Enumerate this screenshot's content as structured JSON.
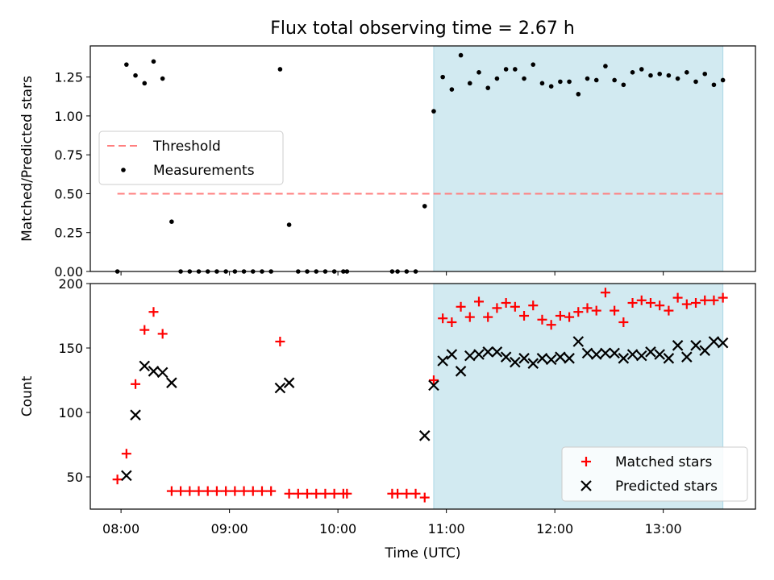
{
  "figure_title": "Flux total observing time = 2.67 h",
  "colors": {
    "threshold": "#ff7f7f",
    "measurements": "#000000",
    "matched": "#ff0000",
    "predicted": "#000000",
    "shade": "#add8e6"
  },
  "chart_data": [
    {
      "type": "scatter",
      "ylabel": "Matched/Predicted stars",
      "xlim": [
        "07:43",
        "13:51"
      ],
      "ylim": [
        0,
        1.45
      ],
      "yticks": [
        "0.00",
        "0.25",
        "0.50",
        "0.75",
        "1.00",
        "1.25"
      ],
      "xtick_values": [
        "08:00",
        "09:00",
        "10:00",
        "11:00",
        "12:00",
        "13:00"
      ],
      "shaded_span": [
        "10:53",
        "13:33"
      ],
      "legend_position": "center-left",
      "threshold": {
        "name": "Threshold",
        "value": 0.5,
        "x_range": [
          "07:58",
          "13:33"
        ]
      },
      "series": [
        {
          "name": "Measurements",
          "points": [
            [
              "07:58",
              0.0
            ],
            [
              "08:03",
              1.33
            ],
            [
              "08:08",
              1.26
            ],
            [
              "08:13",
              1.21
            ],
            [
              "08:18",
              1.35
            ],
            [
              "08:23",
              1.24
            ],
            [
              "08:28",
              0.32
            ],
            [
              "08:33",
              0.0
            ],
            [
              "08:38",
              0.0
            ],
            [
              "08:43",
              0.0
            ],
            [
              "08:48",
              0.0
            ],
            [
              "08:53",
              0.0
            ],
            [
              "08:58",
              0.0
            ],
            [
              "09:03",
              0.0
            ],
            [
              "09:08",
              0.0
            ],
            [
              "09:13",
              0.0
            ],
            [
              "09:18",
              0.0
            ],
            [
              "09:23",
              0.0
            ],
            [
              "09:28",
              1.3
            ],
            [
              "09:33",
              0.3
            ],
            [
              "09:38",
              0.0
            ],
            [
              "09:43",
              0.0
            ],
            [
              "09:48",
              0.0
            ],
            [
              "09:53",
              0.0
            ],
            [
              "09:58",
              0.0
            ],
            [
              "10:03",
              0.0
            ],
            [
              "10:05",
              0.0
            ],
            [
              "10:30",
              0.0
            ],
            [
              "10:33",
              0.0
            ],
            [
              "10:38",
              0.0
            ],
            [
              "10:43",
              0.0
            ],
            [
              "10:48",
              0.42
            ],
            [
              "10:53",
              1.03
            ],
            [
              "10:58",
              1.25
            ],
            [
              "11:03",
              1.17
            ],
            [
              "11:08",
              1.39
            ],
            [
              "11:13",
              1.21
            ],
            [
              "11:18",
              1.28
            ],
            [
              "11:23",
              1.18
            ],
            [
              "11:28",
              1.24
            ],
            [
              "11:33",
              1.3
            ],
            [
              "11:38",
              1.3
            ],
            [
              "11:43",
              1.24
            ],
            [
              "11:48",
              1.33
            ],
            [
              "11:53",
              1.21
            ],
            [
              "11:58",
              1.19
            ],
            [
              "12:03",
              1.22
            ],
            [
              "12:08",
              1.22
            ],
            [
              "12:13",
              1.14
            ],
            [
              "12:18",
              1.24
            ],
            [
              "12:23",
              1.23
            ],
            [
              "12:28",
              1.32
            ],
            [
              "12:33",
              1.23
            ],
            [
              "12:38",
              1.2
            ],
            [
              "12:43",
              1.28
            ],
            [
              "12:48",
              1.3
            ],
            [
              "12:53",
              1.26
            ],
            [
              "12:58",
              1.27
            ],
            [
              "13:03",
              1.26
            ],
            [
              "13:08",
              1.24
            ],
            [
              "13:13",
              1.28
            ],
            [
              "13:18",
              1.22
            ],
            [
              "13:23",
              1.27
            ],
            [
              "13:28",
              1.2
            ],
            [
              "13:33",
              1.23
            ]
          ]
        }
      ]
    },
    {
      "type": "scatter",
      "xlabel": "Time (UTC)",
      "ylabel": "Count",
      "xlim": [
        "07:43",
        "13:51"
      ],
      "ylim": [
        25,
        200
      ],
      "yticks": [
        "50",
        "100",
        "150",
        "200"
      ],
      "xticks": [
        "08:00",
        "09:00",
        "10:00",
        "11:00",
        "12:00",
        "13:00"
      ],
      "shaded_span": [
        "10:53",
        "13:33"
      ],
      "legend_position": "lower-right",
      "series": [
        {
          "name": "Matched stars",
          "marker": "plus",
          "points": [
            [
              "07:58",
              48
            ],
            [
              "08:03",
              68
            ],
            [
              "08:08",
              122
            ],
            [
              "08:13",
              164
            ],
            [
              "08:18",
              178
            ],
            [
              "08:23",
              161
            ],
            [
              "08:28",
              39
            ],
            [
              "08:33",
              39
            ],
            [
              "08:38",
              39
            ],
            [
              "08:43",
              39
            ],
            [
              "08:48",
              39
            ],
            [
              "08:53",
              39
            ],
            [
              "08:58",
              39
            ],
            [
              "09:03",
              39
            ],
            [
              "09:08",
              39
            ],
            [
              "09:13",
              39
            ],
            [
              "09:18",
              39
            ],
            [
              "09:23",
              39
            ],
            [
              "09:28",
              155
            ],
            [
              "09:33",
              37
            ],
            [
              "09:38",
              37
            ],
            [
              "09:43",
              37
            ],
            [
              "09:48",
              37
            ],
            [
              "09:53",
              37
            ],
            [
              "09:58",
              37
            ],
            [
              "10:03",
              37
            ],
            [
              "10:05",
              37
            ],
            [
              "10:30",
              37
            ],
            [
              "10:33",
              37
            ],
            [
              "10:38",
              37
            ],
            [
              "10:43",
              37
            ],
            [
              "10:48",
              34
            ],
            [
              "10:53",
              125
            ],
            [
              "10:58",
              173
            ],
            [
              "11:03",
              170
            ],
            [
              "11:08",
              182
            ],
            [
              "11:13",
              174
            ],
            [
              "11:18",
              186
            ],
            [
              "11:23",
              174
            ],
            [
              "11:28",
              181
            ],
            [
              "11:33",
              185
            ],
            [
              "11:38",
              182
            ],
            [
              "11:43",
              175
            ],
            [
              "11:48",
              183
            ],
            [
              "11:53",
              172
            ],
            [
              "11:58",
              168
            ],
            [
              "12:03",
              175
            ],
            [
              "12:08",
              174
            ],
            [
              "12:13",
              178
            ],
            [
              "12:18",
              181
            ],
            [
              "12:23",
              179
            ],
            [
              "12:28",
              193
            ],
            [
              "12:33",
              179
            ],
            [
              "12:38",
              170
            ],
            [
              "12:43",
              185
            ],
            [
              "12:48",
              187
            ],
            [
              "12:53",
              185
            ],
            [
              "12:58",
              183
            ],
            [
              "13:03",
              179
            ],
            [
              "13:08",
              189
            ],
            [
              "13:13",
              184
            ],
            [
              "13:18",
              185
            ],
            [
              "13:23",
              187
            ],
            [
              "13:28",
              187
            ],
            [
              "13:33",
              189
            ]
          ]
        },
        {
          "name": "Predicted stars",
          "marker": "x",
          "points": [
            [
              "08:03",
              51
            ],
            [
              "08:08",
              98
            ],
            [
              "08:13",
              136
            ],
            [
              "08:18",
              132
            ],
            [
              "08:23",
              131
            ],
            [
              "08:28",
              123
            ],
            [
              "09:28",
              119
            ],
            [
              "09:33",
              123
            ],
            [
              "10:48",
              82
            ],
            [
              "10:53",
              121
            ],
            [
              "10:58",
              140
            ],
            [
              "11:03",
              145
            ],
            [
              "11:08",
              132
            ],
            [
              "11:13",
              144
            ],
            [
              "11:18",
              145
            ],
            [
              "11:23",
              147
            ],
            [
              "11:28",
              147
            ],
            [
              "11:33",
              143
            ],
            [
              "11:38",
              139
            ],
            [
              "11:43",
              142
            ],
            [
              "11:48",
              138
            ],
            [
              "11:53",
              142
            ],
            [
              "11:58",
              141
            ],
            [
              "12:03",
              143
            ],
            [
              "12:08",
              142
            ],
            [
              "12:13",
              155
            ],
            [
              "12:18",
              146
            ],
            [
              "12:23",
              145
            ],
            [
              "12:28",
              146
            ],
            [
              "12:33",
              146
            ],
            [
              "12:38",
              142
            ],
            [
              "12:43",
              145
            ],
            [
              "12:48",
              144
            ],
            [
              "12:53",
              147
            ],
            [
              "12:58",
              145
            ],
            [
              "13:03",
              142
            ],
            [
              "13:08",
              152
            ],
            [
              "13:13",
              143
            ],
            [
              "13:18",
              152
            ],
            [
              "13:23",
              148
            ],
            [
              "13:28",
              155
            ],
            [
              "13:33",
              154
            ]
          ]
        }
      ]
    }
  ]
}
